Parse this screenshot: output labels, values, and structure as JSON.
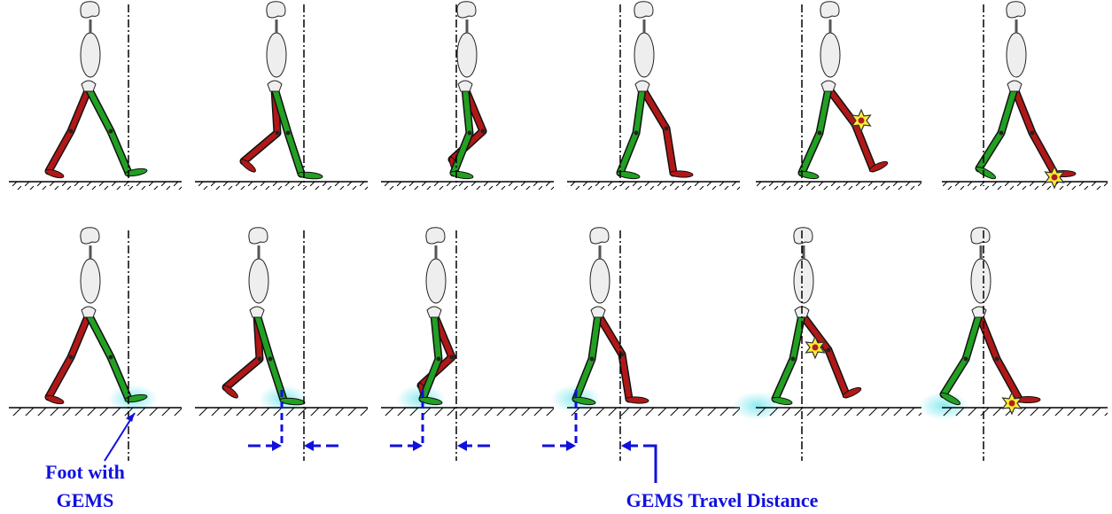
{
  "annotations": {
    "foot_label": {
      "lines": [
        "Foot with",
        "GEMS"
      ]
    },
    "travel_label": "GEMS Travel Distance"
  }
}
